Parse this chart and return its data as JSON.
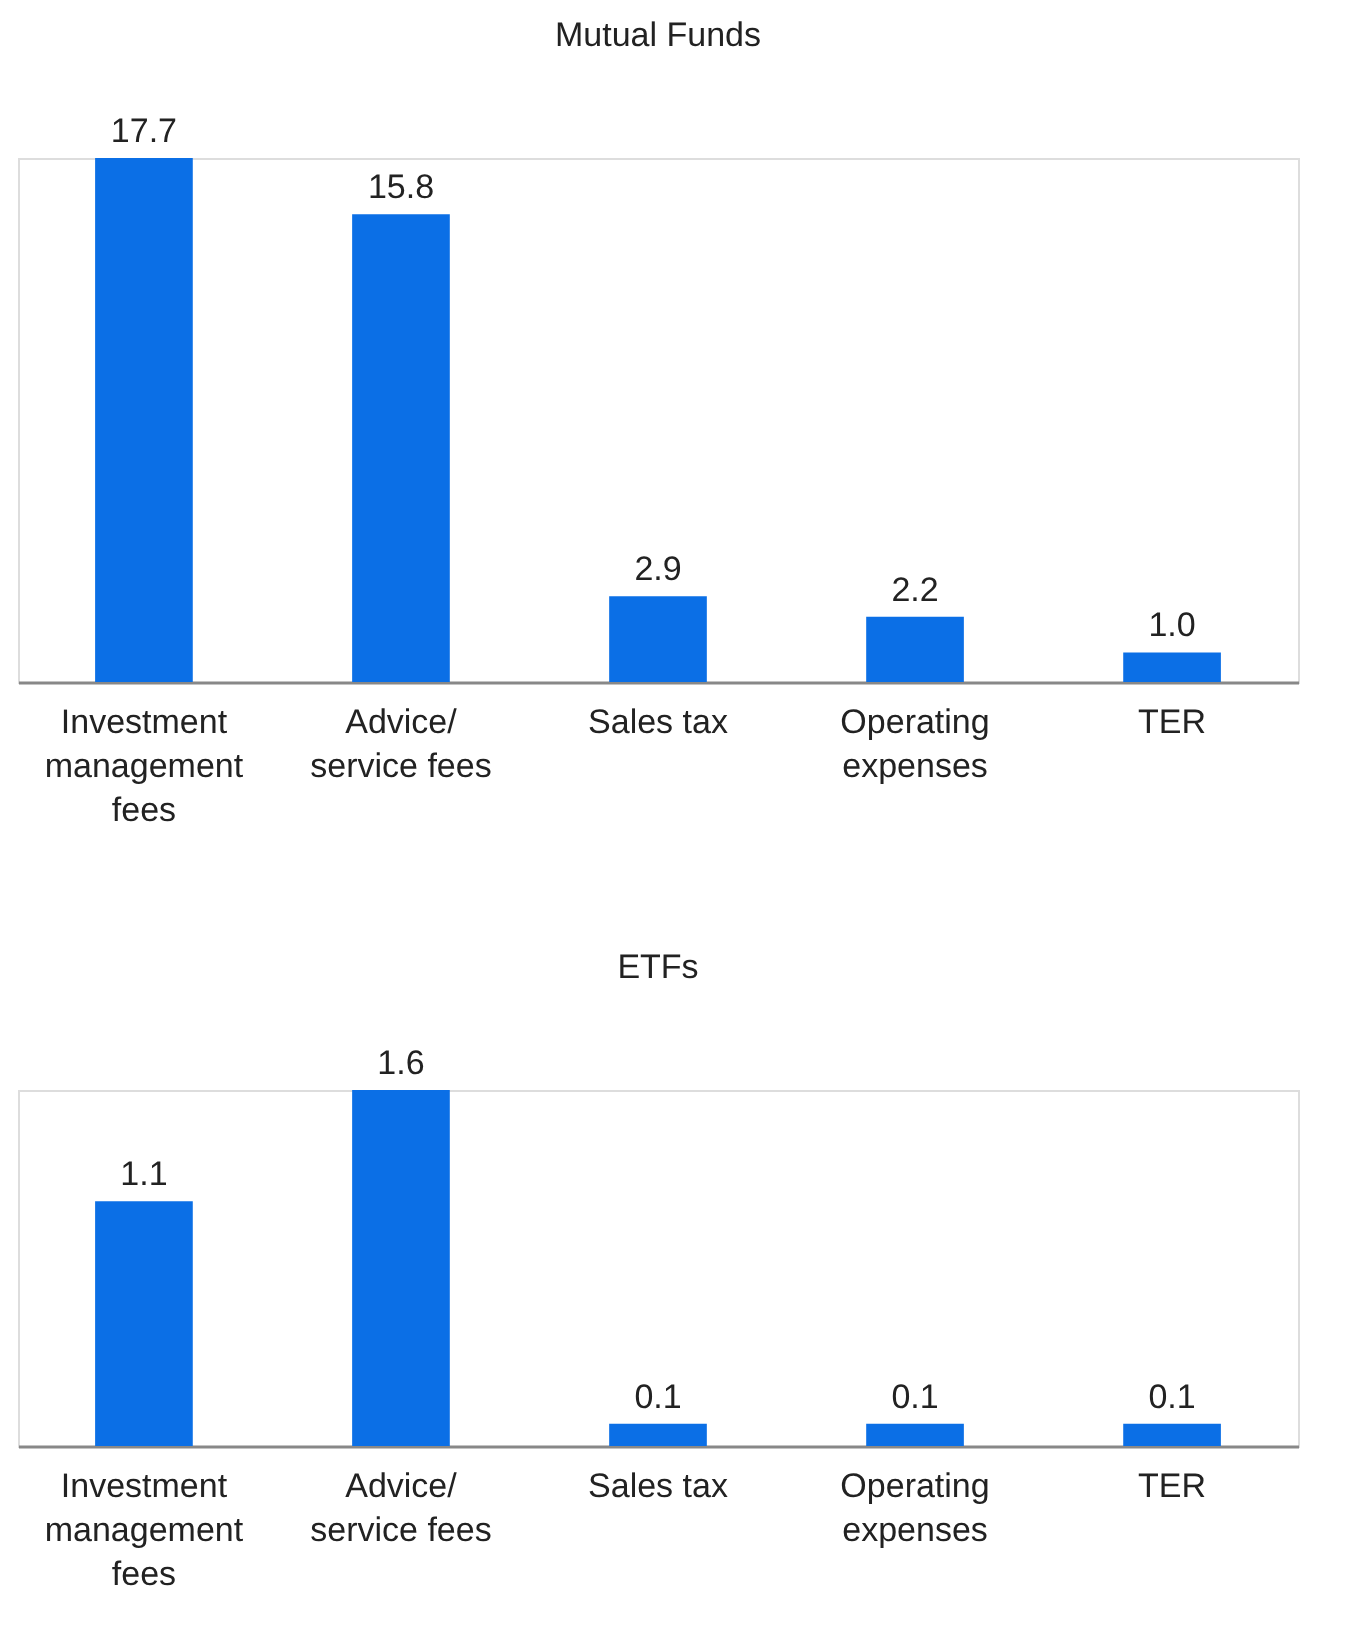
{
  "chart_data": [
    {
      "type": "bar",
      "title": "Mutual Funds",
      "categories": [
        "Investment\nmanagement\nfees",
        "Advice/\nservice fees",
        "Sales tax",
        "Operating\nexpenses",
        "TER"
      ],
      "values": [
        17.7,
        15.8,
        2.9,
        2.2,
        1.0
      ],
      "value_labels": [
        "17.7",
        "15.8",
        "2.9",
        "2.2",
        "1.0"
      ],
      "color": "#0b6fe6",
      "tick_labels": "x",
      "grid": false
    },
    {
      "type": "bar",
      "title": "ETFs",
      "categories": [
        "Investment\nmanagement\nfees",
        "Advice/\nservice fees",
        "Sales tax",
        "Operating\nexpenses",
        "TER"
      ],
      "values": [
        1.1,
        1.6,
        0.1,
        0.1,
        0.1
      ],
      "value_labels": [
        "1.1",
        "1.6",
        "0.1",
        "0.1",
        "0.1"
      ],
      "color": "#0b6fe6",
      "tick_labels": "x",
      "grid": false
    }
  ]
}
